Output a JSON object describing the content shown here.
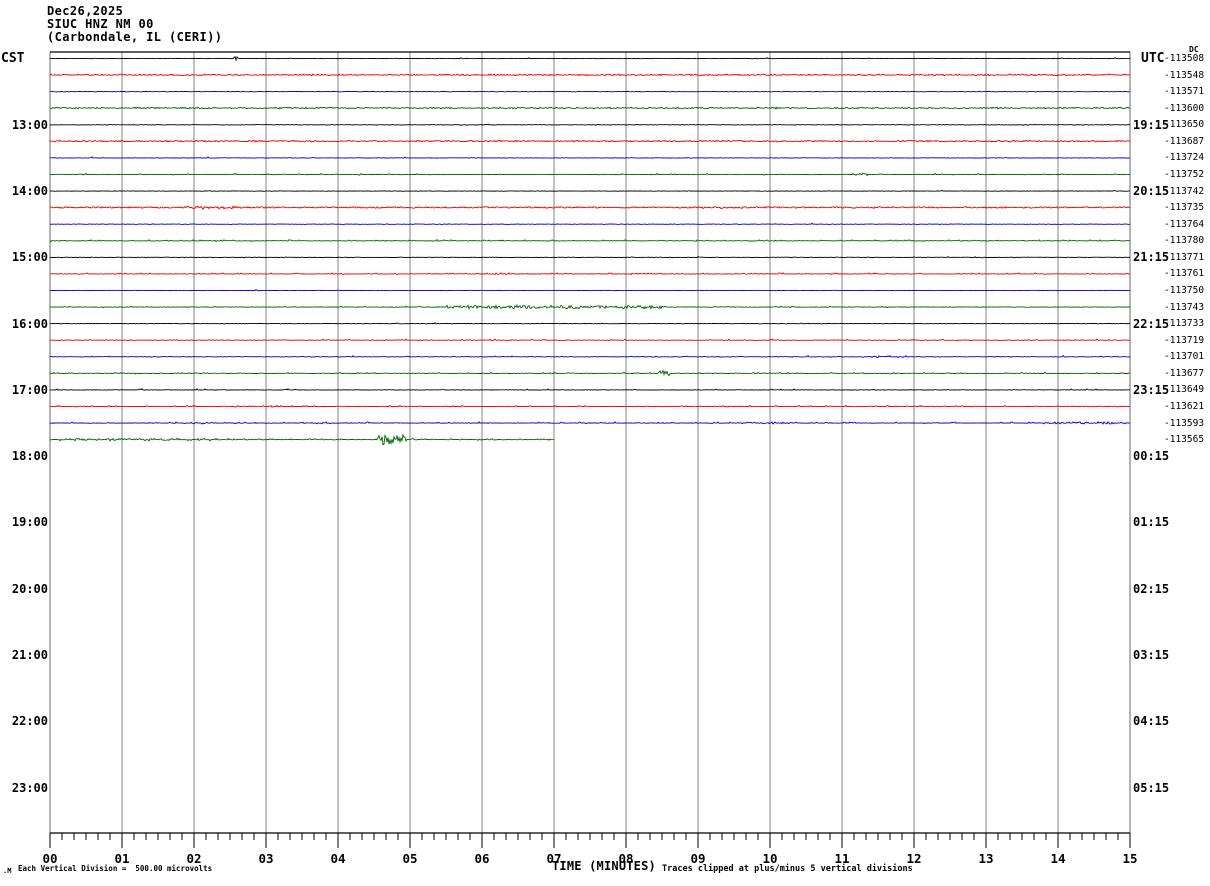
{
  "header": {
    "date_line": "Dec26,2025",
    "station_line": "SIUC HNZ NM 00",
    "location_line": "(Carbondale, IL (CERI))"
  },
  "axes": {
    "left_label": "CST",
    "right_label": "UTC",
    "dc_header": "DC",
    "left_hour_labels": [
      "13:00",
      "14:00",
      "15:00",
      "16:00",
      "17:00",
      "18:00",
      "19:00",
      "20:00",
      "21:00",
      "22:00",
      "23:00"
    ],
    "right_hour_labels": [
      "19:15",
      "20:15",
      "21:15",
      "22:15",
      "23:15",
      "00:15",
      "01:15",
      "02:15",
      "03:15",
      "04:15",
      "05:15"
    ],
    "x_tick_labels": [
      "00",
      "01",
      "02",
      "03",
      "04",
      "05",
      "06",
      "07",
      "08",
      "09",
      "10",
      "11",
      "12",
      "13",
      "14",
      "15"
    ],
    "x_axis_title": "TIME (MINUTES)"
  },
  "footer": {
    "left_mark": ".M",
    "scale_note": "Each Vertical Division =  500.00 microvolts",
    "clip_note": "Traces clipped at plus/minus 5 vertical divisions"
  },
  "chart_data": {
    "type": "line",
    "title": "SIUC HNZ NM 00 helicorder, Dec26,2025, Carbondale IL (CERI)",
    "xlabel": "TIME (MINUTES)",
    "x_range_minutes": [
      0,
      15
    ],
    "minutes_per_trace": 15,
    "vertical_division_microvolts": 500.0,
    "clip_divisions": 5,
    "grid": "vertical-minute-lines",
    "colors": {
      "black": "#000000",
      "red": "#ee0000",
      "blue": "#0000cc",
      "green": "#006400"
    },
    "traces": [
      {
        "row": 0,
        "cst_start": "12:00",
        "color": "black",
        "dc": -113508,
        "end_min": 15,
        "speckle_prob": 0.006,
        "speckle_amp": 1.0,
        "events": [
          {
            "start": 2.55,
            "end": 2.62,
            "amp": 1.8,
            "density": 1.0
          }
        ]
      },
      {
        "row": 1,
        "cst_start": "12:15",
        "color": "red",
        "dc": -113548,
        "end_min": 15,
        "speckle_prob": 0.45,
        "speckle_amp": 0.8,
        "events": []
      },
      {
        "row": 2,
        "cst_start": "12:30",
        "color": "blue",
        "dc": -113571,
        "end_min": 15,
        "speckle_prob": 0.004,
        "speckle_amp": 0.8,
        "events": []
      },
      {
        "row": 3,
        "cst_start": "12:45",
        "color": "green",
        "dc": -113600,
        "end_min": 15,
        "speckle_prob": 0.5,
        "speckle_amp": 0.8,
        "events": []
      },
      {
        "row": 4,
        "cst_start": "13:00",
        "color": "black",
        "dc": -113650,
        "end_min": 15,
        "speckle_prob": 0.008,
        "speckle_amp": 1.0,
        "events": []
      },
      {
        "row": 5,
        "cst_start": "13:15",
        "color": "red",
        "dc": -113687,
        "end_min": 15,
        "speckle_prob": 0.55,
        "speckle_amp": 0.8,
        "events": []
      },
      {
        "row": 6,
        "cst_start": "13:30",
        "color": "blue",
        "dc": -113724,
        "end_min": 15,
        "speckle_prob": 0.005,
        "speckle_amp": 0.8,
        "events": []
      },
      {
        "row": 7,
        "cst_start": "13:45",
        "color": "green",
        "dc": -113752,
        "end_min": 15,
        "speckle_prob": 0.05,
        "speckle_amp": 0.9,
        "events": [
          {
            "start": 11.15,
            "end": 11.35,
            "amp": 1.4,
            "density": 0.7
          }
        ]
      },
      {
        "row": 8,
        "cst_start": "14:00",
        "color": "black",
        "dc": -113742,
        "end_min": 15,
        "speckle_prob": 0.006,
        "speckle_amp": 1.0,
        "events": []
      },
      {
        "row": 9,
        "cst_start": "14:15",
        "color": "red",
        "dc": -113735,
        "end_min": 15,
        "speckle_prob": 0.55,
        "speckle_amp": 0.8,
        "events": [
          {
            "start": 1.9,
            "end": 2.6,
            "amp": 1.5,
            "density": 0.5
          },
          {
            "start": 8.9,
            "end": 9.9,
            "amp": 1.1,
            "density": 0.35
          }
        ]
      },
      {
        "row": 10,
        "cst_start": "14:30",
        "color": "blue",
        "dc": -113764,
        "end_min": 15,
        "speckle_prob": 0.005,
        "speckle_amp": 0.8,
        "events": []
      },
      {
        "row": 11,
        "cst_start": "14:45",
        "color": "green",
        "dc": -113780,
        "end_min": 15,
        "speckle_prob": 0.12,
        "speckle_amp": 0.9,
        "events": []
      },
      {
        "row": 12,
        "cst_start": "15:00",
        "color": "black",
        "dc": -113771,
        "end_min": 15,
        "speckle_prob": 0.006,
        "speckle_amp": 1.0,
        "events": []
      },
      {
        "row": 13,
        "cst_start": "15:15",
        "color": "red",
        "dc": -113761,
        "end_min": 15,
        "speckle_prob": 0.15,
        "speckle_amp": 0.9,
        "events": []
      },
      {
        "row": 14,
        "cst_start": "15:30",
        "color": "blue",
        "dc": -113750,
        "end_min": 15,
        "speckle_prob": 0.008,
        "speckle_amp": 0.8,
        "events": []
      },
      {
        "row": 15,
        "cst_start": "15:45",
        "color": "green",
        "dc": -113743,
        "end_min": 15,
        "speckle_prob": 0.05,
        "speckle_amp": 0.9,
        "events": [
          {
            "start": 5.5,
            "end": 8.5,
            "amp": 1.6,
            "density": 0.85
          }
        ]
      },
      {
        "row": 16,
        "cst_start": "16:00",
        "color": "black",
        "dc": -113733,
        "end_min": 15,
        "speckle_prob": 0.006,
        "speckle_amp": 1.0,
        "events": []
      },
      {
        "row": 17,
        "cst_start": "16:15",
        "color": "red",
        "dc": -113719,
        "end_min": 15,
        "speckle_prob": 0.08,
        "speckle_amp": 0.9,
        "events": []
      },
      {
        "row": 18,
        "cst_start": "16:30",
        "color": "blue",
        "dc": -113701,
        "end_min": 15,
        "speckle_prob": 0.03,
        "speckle_amp": 0.9,
        "events": [
          {
            "start": 11.2,
            "end": 11.9,
            "amp": 1.2,
            "density": 0.4
          }
        ]
      },
      {
        "row": 19,
        "cst_start": "16:45",
        "color": "green",
        "dc": -113677,
        "end_min": 15,
        "speckle_prob": 0.1,
        "speckle_amp": 0.9,
        "events": [
          {
            "start": 8.45,
            "end": 8.6,
            "amp": 3.5,
            "density": 1.0
          }
        ]
      },
      {
        "row": 20,
        "cst_start": "17:00",
        "color": "black",
        "dc": -113649,
        "end_min": 15,
        "speckle_prob": 0.012,
        "speckle_amp": 1.0,
        "events": []
      },
      {
        "row": 21,
        "cst_start": "17:15",
        "color": "red",
        "dc": -113621,
        "end_min": 15,
        "speckle_prob": 0.12,
        "speckle_amp": 0.9,
        "events": []
      },
      {
        "row": 22,
        "cst_start": "17:30",
        "color": "blue",
        "dc": -113593,
        "end_min": 15,
        "speckle_prob": 0.1,
        "speckle_amp": 0.9,
        "events": [
          {
            "start": 1.7,
            "end": 2.2,
            "amp": 1.1,
            "density": 0.5
          },
          {
            "start": 3.3,
            "end": 3.9,
            "amp": 1.1,
            "density": 0.5
          },
          {
            "start": 9.6,
            "end": 10.4,
            "amp": 1.0,
            "density": 0.35
          },
          {
            "start": 13.8,
            "end": 15.0,
            "amp": 1.1,
            "density": 0.5
          }
        ]
      },
      {
        "row": 23,
        "cst_start": "17:45",
        "color": "green",
        "dc": -113565,
        "end_min": 7.0,
        "speckle_prob": 0.25,
        "speckle_amp": 0.9,
        "events": [
          {
            "start": 0.1,
            "end": 2.3,
            "amp": 1.3,
            "density": 0.45
          },
          {
            "start": 4.55,
            "end": 4.95,
            "amp": 5.0,
            "density": 1.0
          }
        ]
      }
    ]
  }
}
